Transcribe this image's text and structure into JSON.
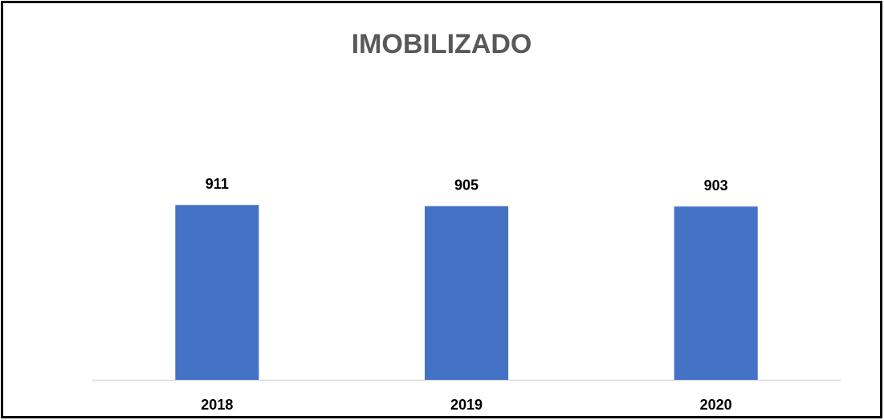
{
  "chart_data": {
    "type": "bar",
    "title": "IMOBILIZADO",
    "categories": [
      "2018",
      "2019",
      "2020"
    ],
    "values": [
      911,
      905,
      903
    ],
    "color": "#4472c4",
    "ylim": [
      0,
      1000
    ]
  }
}
